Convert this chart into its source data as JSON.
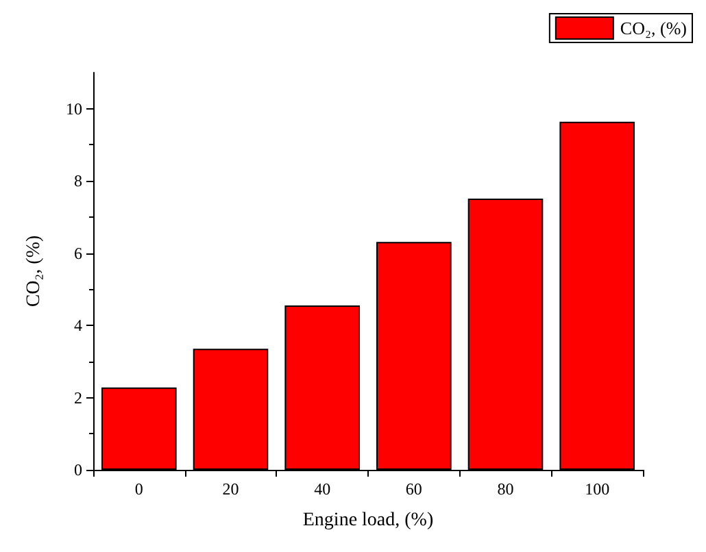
{
  "chart_data": {
    "type": "bar",
    "xlabel": "Engine load, (%)",
    "ylabel": "CO₂, (%)",
    "categories": [
      "0",
      "20",
      "40",
      "60",
      "80",
      "100"
    ],
    "series": [
      {
        "name": "CO₂, (%)",
        "color": "#ff0000",
        "values": [
          2.28,
          3.35,
          4.55,
          6.31,
          7.51,
          9.64
        ]
      }
    ],
    "ylim": [
      0,
      11
    ],
    "yticks": [
      0,
      2,
      4,
      6,
      8,
      10
    ],
    "grid": false,
    "legend": "top right"
  }
}
